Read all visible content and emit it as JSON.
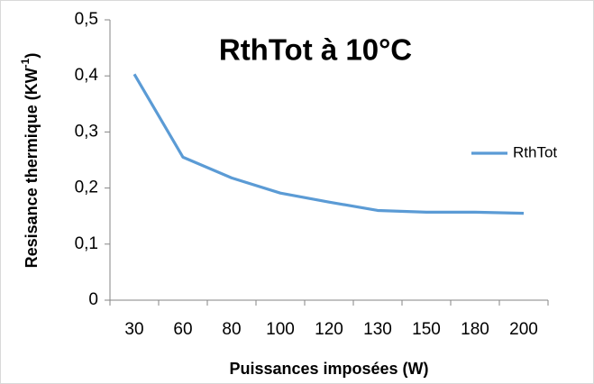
{
  "chart_data": {
    "type": "line",
    "title": "RthTot à 10°C",
    "x_label": "Puissances imposées (W)",
    "y_label": {
      "main": "Resisance thermique (KW",
      "superscript": "-1",
      "close": ")"
    },
    "categories": [
      "30",
      "60",
      "80",
      "100",
      "120",
      "130",
      "150",
      "180",
      "200"
    ],
    "series": [
      {
        "name": "RthTot",
        "color": "#5b9bd5",
        "values": [
          0.403,
          0.255,
          0.218,
          0.191,
          0.175,
          0.16,
          0.157,
          0.157,
          0.155
        ]
      }
    ],
    "ylim": [
      0,
      0.5
    ],
    "yticks": [
      0,
      {
        "value": 0.1,
        "label": "0,1"
      },
      {
        "value": 0.2,
        "label": "0,2"
      },
      {
        "value": 0.3,
        "label": "0,3"
      },
      {
        "value": 0.4,
        "label": "0,4"
      },
      {
        "value": 0.5,
        "label": "0,5"
      }
    ],
    "grid": false,
    "legend": "right"
  }
}
